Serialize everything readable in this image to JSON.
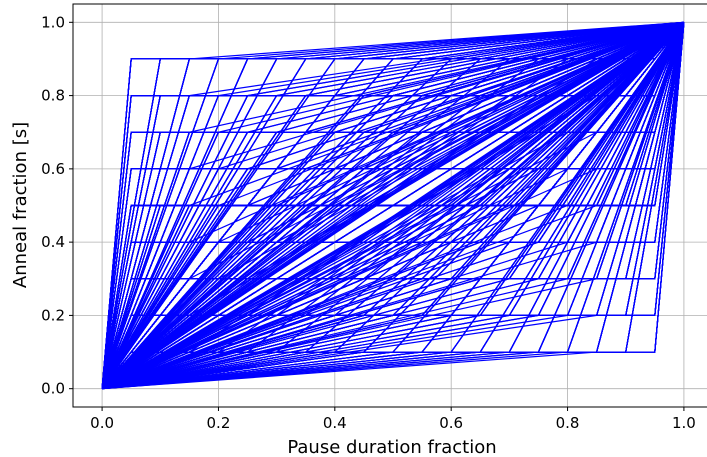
{
  "chart_data": {
    "type": "line",
    "title": "",
    "xlabel": "Pause duration fraction",
    "ylabel": "Anneal fraction [s]",
    "xlim": [
      -0.05,
      1.05
    ],
    "ylim": [
      -0.05,
      1.05
    ],
    "xticks": [
      "0.0",
      "0.2",
      "0.4",
      "0.6",
      "0.8",
      "1.0"
    ],
    "yticks": [
      "0.0",
      "0.2",
      "0.4",
      "0.6",
      "0.8",
      "1.0"
    ],
    "grid": true,
    "line_color": "#0000ff",
    "schedule_family": {
      "start": [
        0.0,
        0.0
      ],
      "end": [
        1.0,
        1.0
      ],
      "pause_levels": [
        0.1,
        0.2,
        0.3,
        0.4,
        0.5,
        0.6,
        0.7,
        0.8,
        0.9
      ],
      "pause_starts": [
        0.05,
        0.1,
        0.15,
        0.2,
        0.25,
        0.3,
        0.35,
        0.4,
        0.45,
        0.5,
        0.55,
        0.6,
        0.65,
        0.7,
        0.75,
        0.8,
        0.85,
        0.9,
        0.95
      ],
      "pause_durations": [
        0.1,
        0.2,
        0.3,
        0.4,
        0.5,
        0.6,
        0.7,
        0.8,
        0.9
      ],
      "note_rule": "each curve: (0,0) -> (start, level) -> (start+duration, level) -> (1,1), only when start+duration <= 0.95"
    }
  }
}
